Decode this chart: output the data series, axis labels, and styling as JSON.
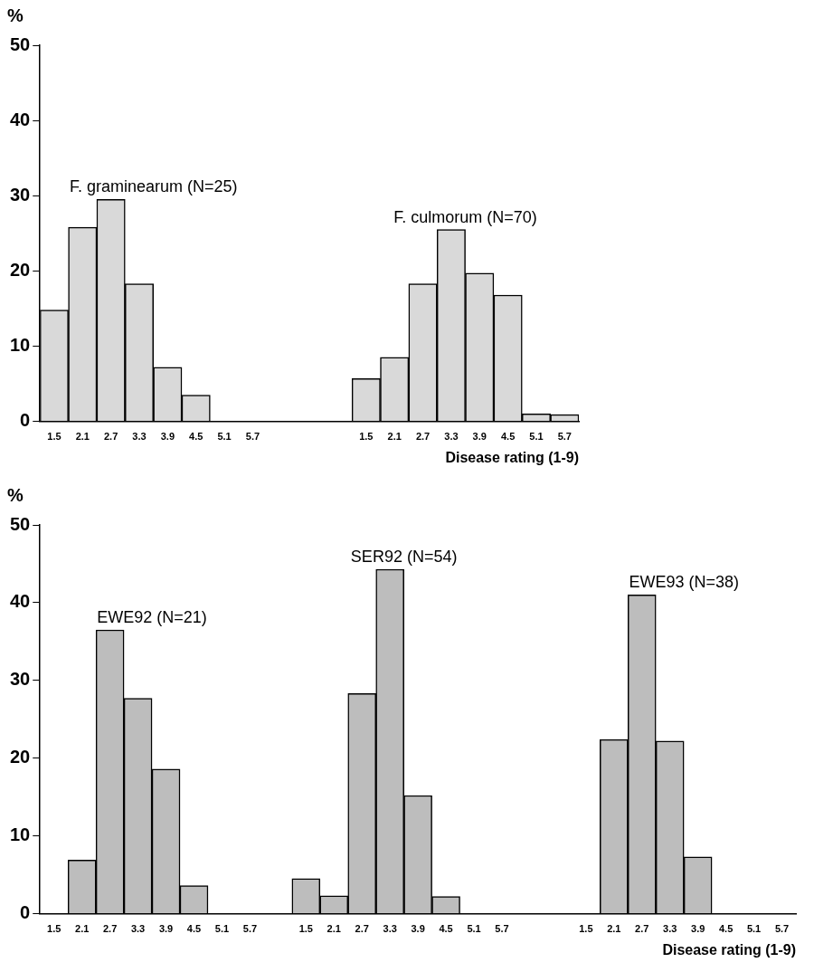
{
  "chart_data": [
    {
      "type": "bar",
      "ylabel": "%",
      "xlabel": "Disease rating (1-9)",
      "categories": [
        "1.5",
        "2.1",
        "2.7",
        "3.3",
        "3.9",
        "4.5",
        "5.1",
        "5.7",
        null,
        null,
        null,
        "1.5",
        "2.1",
        "2.7",
        "3.3",
        "3.9",
        "4.5",
        "5.1",
        "5.7"
      ],
      "series": [
        {
          "name": "F. graminearum (N=25)",
          "color": "#d9d9d9",
          "values": [
            14.8,
            25.8,
            29.5,
            18.3,
            7.2,
            3.5,
            0,
            0,
            null,
            null,
            null,
            null,
            null,
            null,
            null,
            null,
            null,
            null,
            null
          ]
        },
        {
          "name": "F. culmorum (N=70)",
          "color": "#d9d9d9",
          "values": [
            null,
            null,
            null,
            null,
            null,
            null,
            null,
            null,
            null,
            null,
            null,
            5.7,
            8.5,
            18.3,
            25.5,
            19.7,
            16.8,
            1,
            0.9
          ]
        }
      ],
      "ylim": [
        0,
        50
      ],
      "yticks": [
        0,
        10,
        20,
        30,
        40,
        50
      ]
    },
    {
      "type": "bar",
      "ylabel": "%",
      "xlabel": "Disease rating (1-9)",
      "categories": [
        "1.5",
        "2.1",
        "2.7",
        "3.3",
        "3.9",
        "4.5",
        "5.1",
        "5.7",
        null,
        "1.5",
        "2.1",
        "2.7",
        "3.3",
        "3.9",
        "4.5",
        "5.1",
        "5.7",
        null,
        null,
        "1.5",
        "2.1",
        "2.7",
        "3.3",
        "3.9",
        "4.5",
        "5.1",
        "5.7"
      ],
      "series": [
        {
          "name": "EWE92 (N=21)",
          "color": "#bdbdbd",
          "values": [
            0,
            6.9,
            36.5,
            27.7,
            18.6,
            3.6,
            0,
            0,
            null,
            null,
            null,
            null,
            null,
            null,
            null,
            null,
            null,
            null,
            null,
            null,
            null,
            null,
            null,
            null,
            null,
            null,
            null
          ]
        },
        {
          "name": "SER92 (N=54)",
          "color": "#bdbdbd",
          "values": [
            null,
            null,
            null,
            null,
            null,
            null,
            null,
            null,
            null,
            4.5,
            2.3,
            28.3,
            44.3,
            15.2,
            2.2,
            0,
            0,
            null,
            null,
            null,
            null,
            null,
            null,
            null,
            null,
            null,
            null
          ]
        },
        {
          "name": "EWE93 (N=38)",
          "color": "#bdbdbd",
          "values": [
            null,
            null,
            null,
            null,
            null,
            null,
            null,
            null,
            null,
            null,
            null,
            null,
            null,
            null,
            null,
            null,
            null,
            null,
            null,
            0,
            22.4,
            41,
            22.2,
            7.3,
            0,
            0,
            0
          ]
        }
      ],
      "ylim": [
        0,
        50
      ],
      "yticks": [
        0,
        10,
        20,
        30,
        40,
        50
      ]
    }
  ]
}
